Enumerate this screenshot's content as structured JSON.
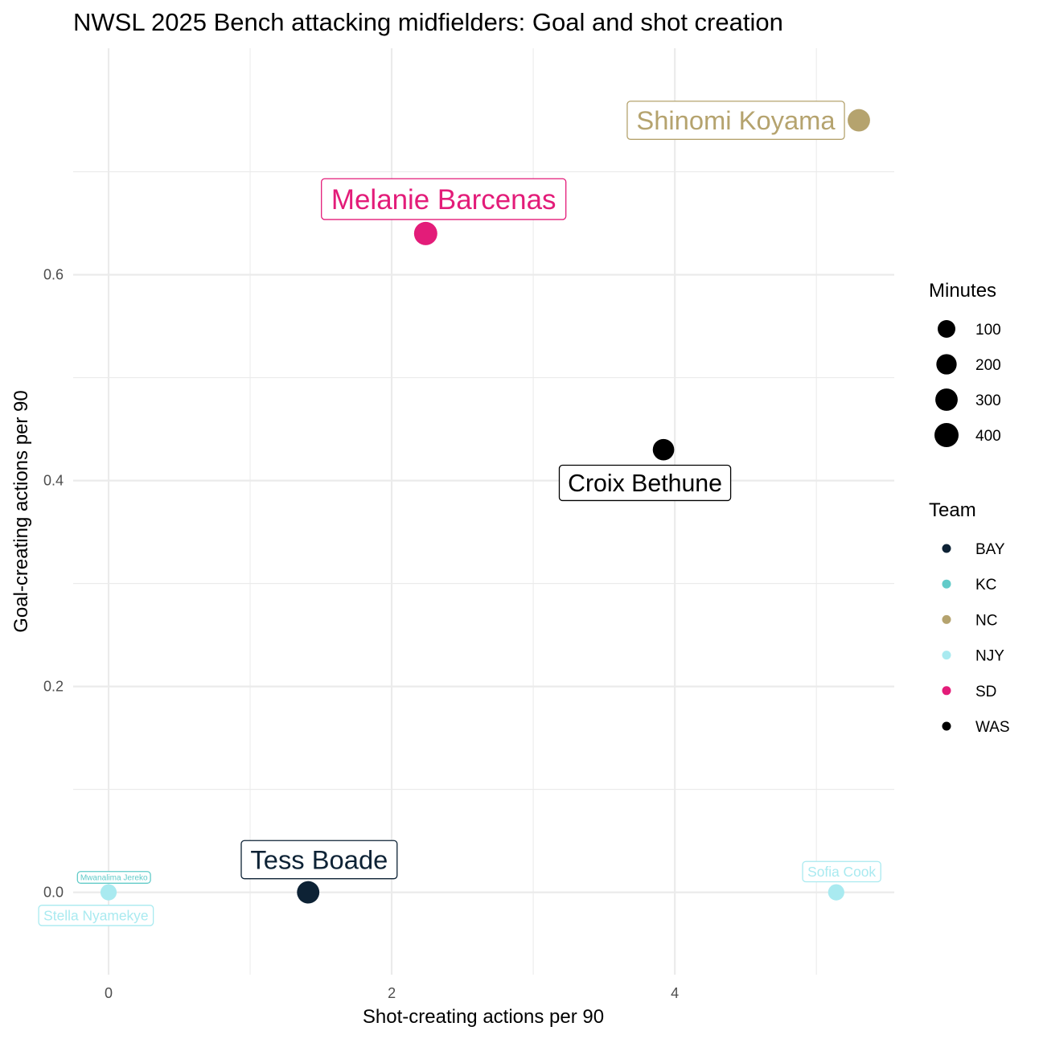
{
  "chart_data": {
    "type": "scatter",
    "title": "NWSL 2025 Bench attacking midfielders: Goal and shot creation",
    "xlabel": "Shot-creating actions per 90",
    "ylabel": "Goal-creating actions per 90",
    "xlim": [
      -0.25,
      5.55
    ],
    "ylim": [
      -0.08,
      0.82
    ],
    "x_ticks": [
      0,
      2,
      4
    ],
    "x_tick_labels": [
      "0",
      "2",
      "4"
    ],
    "y_ticks": [
      0.0,
      0.2,
      0.4,
      0.6
    ],
    "y_tick_labels": [
      "0.0",
      "0.2",
      "0.4",
      "0.6"
    ],
    "grid": true,
    "points": [
      {
        "player": "Shinomi Koyama",
        "team": "NC",
        "x": 5.3,
        "y": 0.75,
        "minutes": 300,
        "label_side": "left"
      },
      {
        "player": "Melanie Barcenas",
        "team": "SD",
        "x": 2.24,
        "y": 0.64,
        "minutes": 350,
        "label_side": "above"
      },
      {
        "player": "Croix Bethune",
        "team": "WAS",
        "x": 3.92,
        "y": 0.43,
        "minutes": 250,
        "label_side": "below"
      },
      {
        "player": "Tess Boade",
        "team": "BAY",
        "x": 1.41,
        "y": 0.0,
        "minutes": 300,
        "label_side": "above"
      },
      {
        "player": "Sofia Cook",
        "team": "NJY",
        "x": 5.14,
        "y": 0.0,
        "minutes": 60,
        "label_side": "above"
      },
      {
        "player": "Mwanalima Jereko",
        "team": "KC",
        "x": 0.0,
        "y": 0.0,
        "minutes": 10,
        "label_side": "above"
      },
      {
        "player": "Stella Nyamekye",
        "team": "NJY",
        "x": 0.0,
        "y": 0.0,
        "minutes": 60,
        "label_side": "below"
      }
    ],
    "legend_size": {
      "title": "Minutes",
      "entries": [
        {
          "label": "100",
          "minutes": 100
        },
        {
          "label": "200",
          "minutes": 200
        },
        {
          "label": "300",
          "minutes": 300
        },
        {
          "label": "400",
          "minutes": 400
        }
      ]
    },
    "legend_color": {
      "title": "Team",
      "entries": [
        {
          "label": "BAY",
          "color": "#0d2235"
        },
        {
          "label": "KC",
          "color": "#62cbc9"
        },
        {
          "label": "NC",
          "color": "#b5a36e"
        },
        {
          "label": "NJY",
          "color": "#a9eaf0"
        },
        {
          "label": "SD",
          "color": "#e31c79"
        },
        {
          "label": "WAS",
          "color": "#000000"
        }
      ]
    },
    "team_colors": {
      "BAY": "#0d2235",
      "KC": "#62cbc9",
      "NC": "#b5a36e",
      "NJY": "#a9eaf0",
      "SD": "#e31c79",
      "WAS": "#000000"
    }
  }
}
